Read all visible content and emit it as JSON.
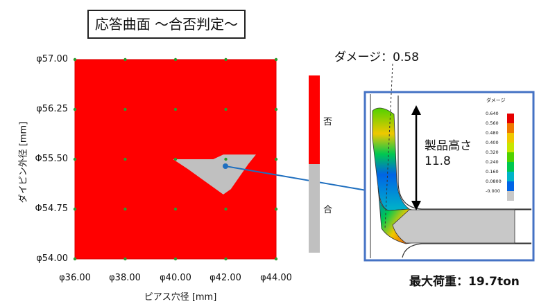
{
  "title": "応答曲面 〜合否判定〜",
  "chart_data": {
    "type": "heatmap",
    "xlabel": "ピアス穴径 [mm]",
    "ylabel": "ダイピン外径 [mm]",
    "x_ticks": [
      "φ36.00",
      "φ38.00",
      "φ40.00",
      "φ42.00",
      "φ44.00"
    ],
    "y_ticks": [
      "φ57.00",
      "φ56.25",
      "Φ55.50",
      "Φ54.75",
      "φ54.00"
    ],
    "xlim": [
      36,
      44
    ],
    "ylim": [
      54,
      57
    ],
    "sample_x": [
      36,
      38,
      40,
      42,
      44
    ],
    "sample_y": [
      54,
      54.75,
      55.5,
      56.25,
      57
    ],
    "regions": [
      {
        "label": "否",
        "color": "#ff0000"
      },
      {
        "label": "合",
        "color": "#c0c0c0"
      }
    ],
    "pass_region_polygon": [
      [
        39.9,
        55.5
      ],
      [
        41.5,
        55.5
      ],
      [
        41.9,
        55.57
      ],
      [
        43.2,
        55.57
      ],
      [
        42.9,
        55.43
      ],
      [
        42.2,
        55.05
      ],
      [
        41.9,
        54.97
      ],
      [
        40.5,
        55.35
      ],
      [
        40.1,
        55.45
      ]
    ],
    "selected_point": [
      42.0,
      55.44
    ]
  },
  "colorbar": {
    "fail_label": "否",
    "pass_label": "合",
    "fail_color": "#ff0000",
    "pass_color": "#c0c0c0"
  },
  "detail": {
    "damage_label": "ダメージ：0.58",
    "height_label_line1": "製品高さ",
    "height_label_line2": "11.8",
    "load_label": "最大荷重：19.7ton",
    "legend_title": "ダメージ",
    "legend_ticks": [
      "0.640",
      "0.560",
      "0.480",
      "0.400",
      "0.320",
      "0.240",
      "0.160",
      "0.0800",
      "-0.000"
    ],
    "legend_colors": [
      "#e60000",
      "#f07800",
      "#f0c800",
      "#c8e600",
      "#50d200",
      "#00c850",
      "#00b4c8",
      "#0064e6",
      "#c8c8c8"
    ],
    "frame_color": "#4472c4",
    "connector_color": "#1f6fbf"
  }
}
